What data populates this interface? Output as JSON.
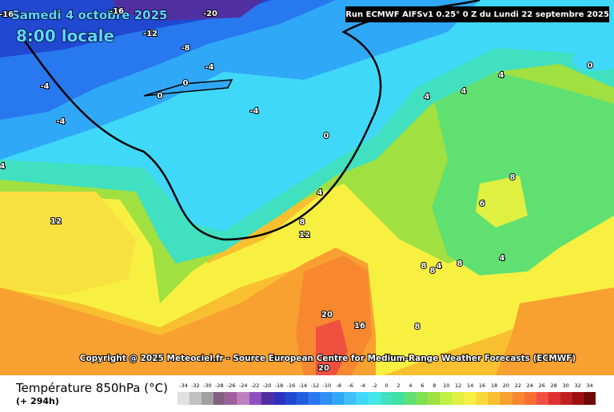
{
  "header": {
    "date": "Samedi 4 octobre 2025",
    "time": "8:00 locale",
    "run": "Run ECMWF AIFSv1 0.25° 0 Z du Lundi 22 septembre 2025"
  },
  "copyright": "Copyright @ 2025 Meteociel.fr - Source European Centre for Medium-Range Weather Forecasts (ECMWF)",
  "contour_labels": [
    "-16",
    "-16",
    "-20",
    "-12",
    "-8",
    "-4",
    "0",
    "0",
    "-4",
    "-4",
    "-4",
    "0",
    "4",
    "4",
    "4",
    "0",
    "4",
    "8",
    "12",
    "12",
    "8",
    "6",
    "4",
    "8",
    "8",
    "4",
    "8",
    "20",
    "16",
    "8",
    "20",
    "4"
  ],
  "legend": {
    "title": "Température 850hPa (°C)",
    "lead": "(+ 294h)",
    "ticks": [
      -34,
      -32,
      -30,
      -28,
      -26,
      -24,
      -22,
      -20,
      -18,
      -16,
      -14,
      -12,
      -10,
      -8,
      -6,
      -4,
      -2,
      0,
      2,
      4,
      6,
      8,
      10,
      12,
      14,
      16,
      18,
      20,
      22,
      24,
      26,
      28,
      30,
      32,
      34
    ],
    "colors": [
      "#e0e0e0",
      "#c0c0c0",
      "#a0a0a0",
      "#806080",
      "#a060a0",
      "#c080c0",
      "#9050c0",
      "#5030a0",
      "#3030c0",
      "#2048d0",
      "#2060e0",
      "#2878f0",
      "#3090f8",
      "#30a8f8",
      "#40c0f8",
      "#40d8f8",
      "#40e8e8",
      "#40e0c0",
      "#40e0a0",
      "#60e070",
      "#80e050",
      "#a0e040",
      "#c0f040",
      "#e0f040",
      "#f8f040",
      "#f8d838",
      "#f8c030",
      "#f8a030",
      "#f88830",
      "#f87030",
      "#f05040",
      "#e03030",
      "#c02020",
      "#a01010",
      "#700808"
    ]
  }
}
